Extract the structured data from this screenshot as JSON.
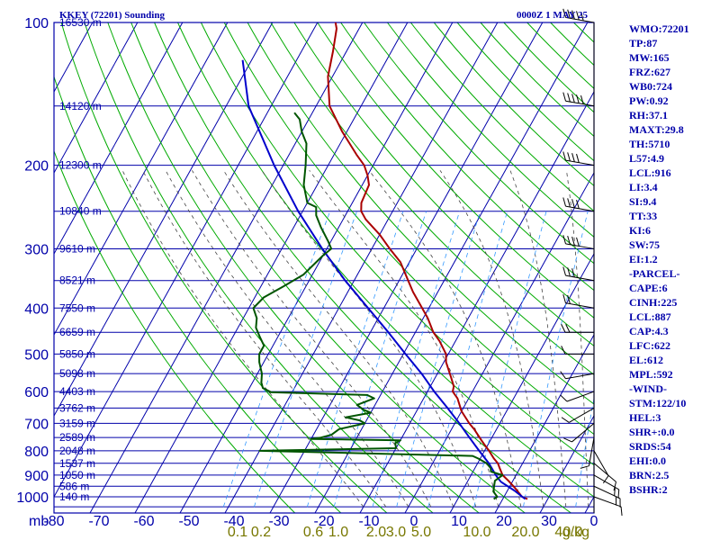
{
  "header": {
    "station": "KKEY (72201) Sounding",
    "time": "0000Z  1 MAY 25"
  },
  "stats": [
    "WMO:72201",
    "TP:87",
    "MW:165",
    "FRZ:627",
    "WB0:724",
    "PW:0.92",
    "RH:37.1",
    "MAXT:29.8",
    "TH:5710",
    "L57:4.9",
    "LCL:916",
    "LI:3.4",
    "SI:9.4",
    "TT:33",
    "KI:6",
    "SW:75",
    "EI:1.2",
    "-PARCEL-",
    "CAPE:6",
    "CINH:225",
    "LCL:887",
    "CAP:4.3",
    "LFC:622",
    "EL:612",
    "MPL:592",
    "-WIND-",
    "STM:122/10",
    "HEL:3",
    "SHR+:0.0",
    "SRDS:54",
    "EHI:0.0",
    "BRN:2.5",
    "BSHR:2"
  ],
  "colors": {
    "axis": "#0000aa",
    "grid": "#0000aa",
    "dry_adiabat": "#00aa00",
    "moist_adiabat": "#444444",
    "mixing_ratio": "#3399ff",
    "temperature": "#aa0000",
    "dewpoint": "#005500",
    "parcel": "#0000cc",
    "mixing_labels": "#777700"
  },
  "chart_data": {
    "type": "line",
    "title": "KKEY (72201) Sounding",
    "xlabel": "",
    "ylabel": "mb",
    "x_unit_ticks": [
      "-80",
      "-70",
      "-60",
      "-50",
      "-40",
      "-30",
      "-20",
      "-10",
      "0",
      "10",
      "20",
      "30",
      "0"
    ],
    "pressure_ticks": [
      "100",
      "200",
      "300",
      "400",
      "500",
      "600",
      "700",
      "800",
      "900",
      "1000"
    ],
    "height_labels": [
      {
        "p": 100,
        "label": "16530 m"
      },
      {
        "p": 150,
        "label": "14120 m"
      },
      {
        "p": 200,
        "label": "12300 m"
      },
      {
        "p": 250,
        "label": "10840 m"
      },
      {
        "p": 300,
        "label": "9610 m"
      },
      {
        "p": 350,
        "label": "8521 m"
      },
      {
        "p": 400,
        "label": "7550 m"
      },
      {
        "p": 450,
        "label": "6659 m"
      },
      {
        "p": 500,
        "label": "5850 m"
      },
      {
        "p": 550,
        "label": "5098 m"
      },
      {
        "p": 600,
        "label": "4403 m"
      },
      {
        "p": 650,
        "label": "3762 m"
      },
      {
        "p": 700,
        "label": "3159 m"
      },
      {
        "p": 750,
        "label": "2589 m"
      },
      {
        "p": 800,
        "label": "2048 m"
      },
      {
        "p": 850,
        "label": "1537 m"
      },
      {
        "p": 900,
        "label": "1050 m"
      },
      {
        "p": 950,
        "label": "586 m"
      },
      {
        "p": 1000,
        "label": "140 m"
      }
    ],
    "mixing_ratio_labels": [
      "0.1",
      "0.2",
      "0.6",
      "1.0",
      "2.0",
      "3.0",
      "5.0",
      "10.0",
      "20.0",
      "40.0",
      "g/kg"
    ],
    "series": [
      {
        "key": "temperature",
        "points": [
          [
            1011,
            25.5
          ],
          [
            1000,
            24
          ],
          [
            960,
            21.5
          ],
          [
            925,
            19
          ],
          [
            900,
            17
          ],
          [
            870,
            15.5
          ],
          [
            850,
            14.5
          ],
          [
            830,
            13
          ],
          [
            800,
            11
          ],
          [
            780,
            9.5
          ],
          [
            760,
            8
          ],
          [
            720,
            5
          ],
          [
            700,
            3.2
          ],
          [
            660,
            0
          ],
          [
            620,
            -2.5
          ],
          [
            600,
            -4.4
          ],
          [
            585,
            -4.8
          ],
          [
            560,
            -6.5
          ],
          [
            520,
            -9.5
          ],
          [
            500,
            -10.5
          ],
          [
            470,
            -13.5
          ],
          [
            450,
            -16
          ],
          [
            420,
            -19
          ],
          [
            400,
            -21.5
          ],
          [
            370,
            -25.5
          ],
          [
            350,
            -28
          ],
          [
            320,
            -32
          ],
          [
            300,
            -36
          ],
          [
            280,
            -40
          ],
          [
            260,
            -45
          ],
          [
            250,
            -47
          ],
          [
            240,
            -48
          ],
          [
            220,
            -48.5
          ],
          [
            210,
            -50
          ],
          [
            200,
            -52
          ],
          [
            190,
            -55
          ],
          [
            170,
            -61
          ],
          [
            150,
            -67
          ],
          [
            130,
            -71
          ],
          [
            115,
            -73
          ],
          [
            103,
            -75
          ],
          [
            100,
            -76
          ]
        ]
      },
      {
        "key": "parcel",
        "points": [
          [
            1011,
            25
          ],
          [
            970,
            21.5
          ],
          [
            930,
            17.5
          ],
          [
            916,
            16.5
          ],
          [
            900,
            15.5
          ],
          [
            850,
            12.5
          ],
          [
            800,
            8.8
          ],
          [
            750,
            5
          ],
          [
            700,
            1
          ],
          [
            650,
            -3.5
          ],
          [
            600,
            -8.5
          ],
          [
            550,
            -13.5
          ],
          [
            500,
            -19.5
          ],
          [
            450,
            -26
          ],
          [
            400,
            -33.5
          ],
          [
            350,
            -42
          ],
          [
            300,
            -51
          ],
          [
            250,
            -61
          ],
          [
            200,
            -72
          ],
          [
            150,
            -85
          ],
          [
            120,
            -92
          ]
        ]
      },
      {
        "key": "dewpoint",
        "points": [
          [
            1011,
            18
          ],
          [
            1000,
            18.5
          ],
          [
            975,
            17
          ],
          [
            950,
            16.5
          ],
          [
            925,
            16
          ],
          [
            900,
            17
          ],
          [
            885,
            14
          ],
          [
            870,
            13.5
          ],
          [
            850,
            12
          ],
          [
            830,
            9.5
          ],
          [
            820,
            8
          ],
          [
            800,
            -40
          ],
          [
            790,
            -10
          ],
          [
            770,
            -10.8
          ],
          [
            760,
            -10
          ],
          [
            755,
            -30
          ],
          [
            750,
            -28
          ],
          [
            740,
            -26
          ],
          [
            720,
            -25
          ],
          [
            700,
            -20
          ],
          [
            690,
            -21.5
          ],
          [
            680,
            -25
          ],
          [
            665,
            -20
          ],
          [
            655,
            -22
          ],
          [
            640,
            -24
          ],
          [
            620,
            -21
          ],
          [
            610,
            -23
          ],
          [
            602,
            -45
          ],
          [
            600,
            -45
          ],
          [
            590,
            -47
          ],
          [
            575,
            -48
          ],
          [
            550,
            -49
          ],
          [
            520,
            -51
          ],
          [
            500,
            -52
          ],
          [
            480,
            -52
          ],
          [
            460,
            -54
          ],
          [
            440,
            -56
          ],
          [
            420,
            -57
          ],
          [
            400,
            -59
          ],
          [
            380,
            -58
          ],
          [
            360,
            -55
          ],
          [
            340,
            -52
          ],
          [
            310,
            -50
          ],
          [
            300,
            -49
          ],
          [
            290,
            -50.5
          ],
          [
            270,
            -54
          ],
          [
            255,
            -56.5
          ],
          [
            250,
            -57
          ],
          [
            245,
            -57.5
          ],
          [
            240,
            -60
          ],
          [
            220,
            -63
          ],
          [
            200,
            -65
          ],
          [
            180,
            -67.5
          ],
          [
            170,
            -70
          ],
          [
            160,
            -72
          ],
          [
            155,
            -74
          ]
        ]
      }
    ],
    "wind_barbs": [
      {
        "p": 1000,
        "dir": 110,
        "kt": 10
      },
      {
        "p": 950,
        "dir": 115,
        "kt": 15
      },
      {
        "p": 900,
        "dir": 120,
        "kt": 15
      },
      {
        "p": 850,
        "dir": 130,
        "kt": 10
      },
      {
        "p": 800,
        "dir": 150,
        "kt": 10
      },
      {
        "p": 750,
        "dir": 190,
        "kt": 10
      },
      {
        "p": 700,
        "dir": 230,
        "kt": 10
      },
      {
        "p": 650,
        "dir": 240,
        "kt": 10
      },
      {
        "p": 600,
        "dir": 250,
        "kt": 10
      },
      {
        "p": 550,
        "dir": 260,
        "kt": 10
      },
      {
        "p": 500,
        "dir": 270,
        "kt": 10
      },
      {
        "p": 450,
        "dir": 270,
        "kt": 15
      },
      {
        "p": 400,
        "dir": 280,
        "kt": 20
      },
      {
        "p": 350,
        "dir": 280,
        "kt": 30
      },
      {
        "p": 300,
        "dir": 280,
        "kt": 40
      },
      {
        "p": 250,
        "dir": 280,
        "kt": 40
      },
      {
        "p": 200,
        "dir": 280,
        "kt": 40
      },
      {
        "p": 150,
        "dir": 280,
        "kt": 50
      },
      {
        "p": 100,
        "dir": 280,
        "kt": 50
      }
    ]
  }
}
